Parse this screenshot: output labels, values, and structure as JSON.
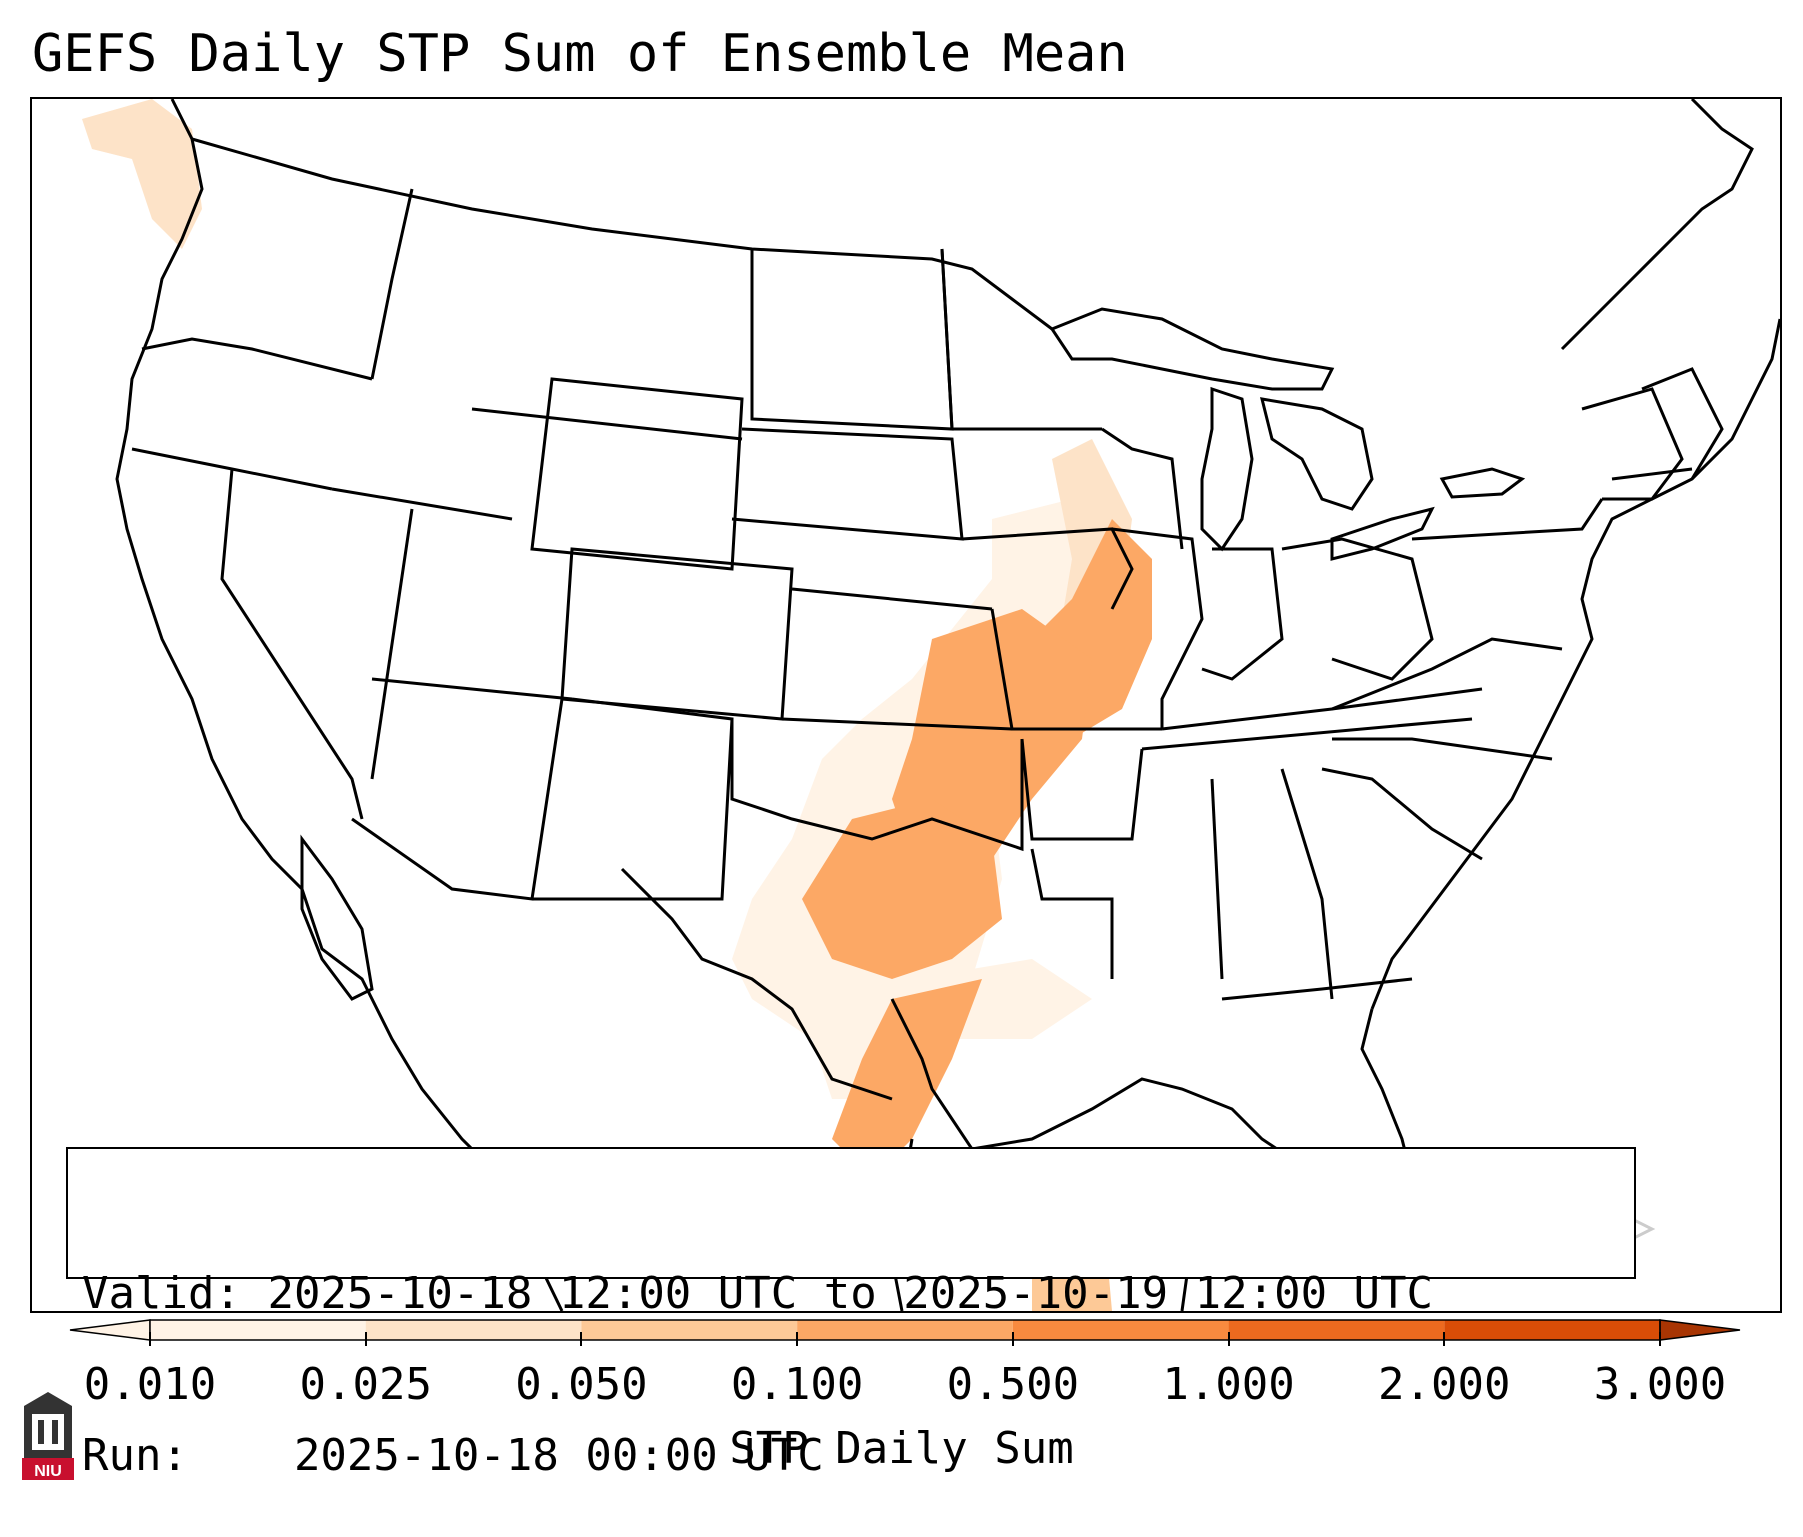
{
  "title": "GEFS Daily STP Sum of Ensemble Mean",
  "valid_box": {
    "valid_label": "Valid:",
    "valid_value": "2025-10-18 12:00 UTC to 2025-10-19 12:00 UTC",
    "run_label": "Run:",
    "run_value": "2025-10-18 00:00 UTC"
  },
  "colorbar": {
    "label": "STP Daily Sum",
    "ticks": [
      "0.010",
      "0.025",
      "0.050",
      "0.100",
      "0.500",
      "1.000",
      "2.000",
      "3.000"
    ],
    "colors": [
      "#fff3e6",
      "#fde3c8",
      "#fdc997",
      "#fca865",
      "#f88a3f",
      "#ec6a1f",
      "#d94d07",
      "#a83503"
    ]
  },
  "logo": {
    "text": "NIU",
    "color": "#c8102e"
  }
}
